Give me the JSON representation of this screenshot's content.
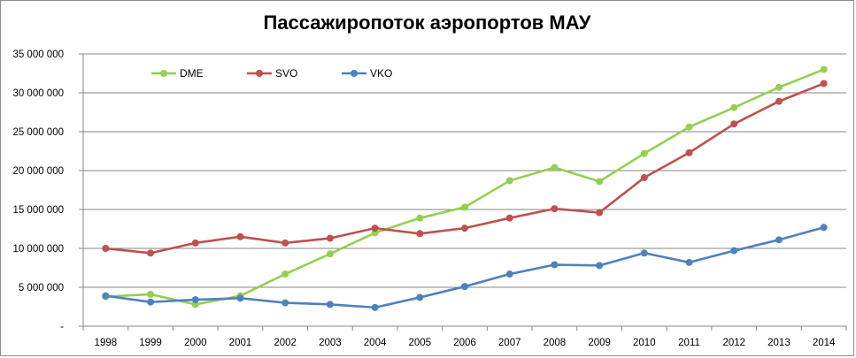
{
  "chart_data": {
    "type": "line",
    "title": "Пассажиропоток аэропортов МАУ",
    "xlabel": "",
    "ylabel": "",
    "categories": [
      "1998",
      "1999",
      "2000",
      "2001",
      "2002",
      "2003",
      "2004",
      "2005",
      "2006",
      "2007",
      "2008",
      "2009",
      "2010",
      "2011",
      "2012",
      "2013",
      "2014"
    ],
    "ylim": [
      0,
      35000000
    ],
    "yticks": [
      0,
      5000000,
      10000000,
      15000000,
      20000000,
      25000000,
      30000000,
      35000000
    ],
    "ytick_labels": [
      "-",
      "5 000 000",
      "10 000 000",
      "15 000 000",
      "20 000 000",
      "25 000 000",
      "30 000 000",
      "35 000 000"
    ],
    "grid": true,
    "legend_position": "top-left",
    "series": [
      {
        "name": "DME",
        "color": "#92d050",
        "values": [
          3800000,
          4100000,
          2800000,
          3900000,
          6700000,
          9300000,
          12000000,
          13900000,
          15300000,
          18700000,
          20400000,
          18600000,
          22200000,
          25600000,
          28100000,
          30700000,
          33000000
        ]
      },
      {
        "name": "SVO",
        "color": "#c0504d",
        "values": [
          10000000,
          9400000,
          10700000,
          11500000,
          10700000,
          11300000,
          12600000,
          11900000,
          12600000,
          13900000,
          15100000,
          14600000,
          19100000,
          22300000,
          26000000,
          28900000,
          31200000
        ]
      },
      {
        "name": "VKO",
        "color": "#4f81bd",
        "values": [
          3900000,
          3100000,
          3400000,
          3600000,
          3000000,
          2800000,
          2400000,
          3700000,
          5100000,
          6700000,
          7900000,
          7800000,
          9400000,
          8200000,
          9700000,
          11100000,
          12700000
        ]
      }
    ]
  }
}
